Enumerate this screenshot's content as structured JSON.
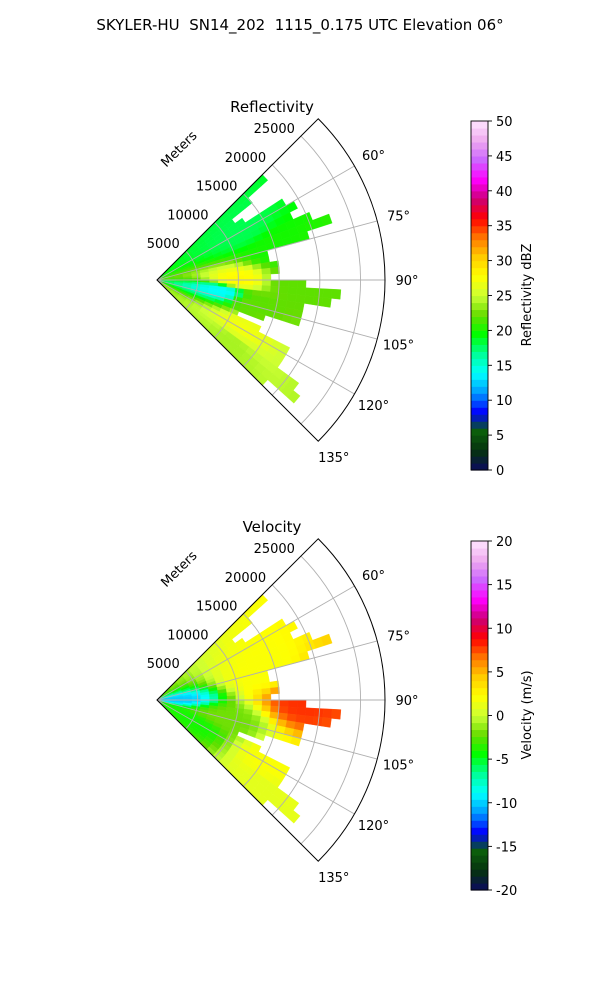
{
  "title": "SKYLER-HU  SN14_202  1115_0.175 UTC Elevation 06°",
  "chart_data": [
    {
      "type": "heatmap",
      "projection": "polar-sector",
      "title": "Reflectivity",
      "range_label": "Meters",
      "range_ticks": [
        5000,
        10000,
        15000,
        20000,
        25000
      ],
      "range_limit": [
        0,
        28000
      ],
      "azimuth_ticks": [
        "60°",
        "75°",
        "90°",
        "105°",
        "120°",
        "135°"
      ],
      "azimuth_range_deg": [
        45,
        135
      ],
      "grid": true,
      "colorbar": {
        "label": "Reflectivity dBZ",
        "ticks": [
          "0",
          "5",
          "10",
          "15",
          "20",
          "25",
          "30",
          "35",
          "40",
          "45",
          "50"
        ],
        "min": 0,
        "max": 50
      },
      "field_samples": [
        {
          "azimuth": 60,
          "range": 12000,
          "value": 18
        },
        {
          "azimuth": 75,
          "range": 15000,
          "value": 20
        },
        {
          "azimuth": 90,
          "range": 10000,
          "value": 28
        },
        {
          "azimuth": 90,
          "range": 17000,
          "value": 22
        },
        {
          "azimuth": 100,
          "range": 8000,
          "value": 14
        },
        {
          "azimuth": 105,
          "range": 12000,
          "value": 22
        },
        {
          "azimuth": 120,
          "range": 12000,
          "value": 27
        },
        {
          "azimuth": 130,
          "range": 12000,
          "value": 24
        }
      ]
    },
    {
      "type": "heatmap",
      "projection": "polar-sector",
      "title": "Velocity",
      "range_label": "Meters",
      "range_ticks": [
        5000,
        10000,
        15000,
        20000,
        25000
      ],
      "range_limit": [
        0,
        28000
      ],
      "azimuth_ticks": [
        "60°",
        "75°",
        "90°",
        "105°",
        "120°",
        "135°"
      ],
      "azimuth_range_deg": [
        45,
        135
      ],
      "grid": true,
      "colorbar": {
        "label": "Velocity (m/s)",
        "ticks": [
          "-20",
          "-15",
          "-10",
          "-5",
          "0",
          "5",
          "10",
          "15",
          "20"
        ],
        "min": -20,
        "max": 20
      },
      "field_samples": [
        {
          "azimuth": 90,
          "range": 2000,
          "value": -10
        },
        {
          "azimuth": 120,
          "range": 5000,
          "value": -4
        },
        {
          "azimuth": 105,
          "range": 9000,
          "value": -2
        },
        {
          "azimuth": 75,
          "range": 14000,
          "value": 2
        },
        {
          "azimuth": 90,
          "range": 18000,
          "value": 8
        },
        {
          "azimuth": 120,
          "range": 16000,
          "value": 2
        },
        {
          "azimuth": 130,
          "range": 17000,
          "value": 1
        }
      ]
    }
  ],
  "colors": {
    "reflectivity_scale": [
      "#0b0b5e",
      "#05320f",
      "#0b5e0b",
      "#0000ff",
      "#0099ff",
      "#00ffff",
      "#00ff99",
      "#00ff00",
      "#66dd00",
      "#ccff33",
      "#ffff00",
      "#ffcc00",
      "#ff7700",
      "#ff0000",
      "#cc0077",
      "#ff00ff",
      "#cc66ff",
      "#eeaaee",
      "#ffe6ff"
    ],
    "velocity_scale": [
      "#0b0b5e",
      "#05320f",
      "#0b5e0b",
      "#0000ff",
      "#0099ff",
      "#00ffff",
      "#00ff99",
      "#00ff00",
      "#66dd00",
      "#ccff33",
      "#ffff00",
      "#ffcc00",
      "#ff7700",
      "#ff0000",
      "#cc0077",
      "#ff00ff",
      "#cc66ff",
      "#eeaaee",
      "#ffe6ff"
    ]
  }
}
